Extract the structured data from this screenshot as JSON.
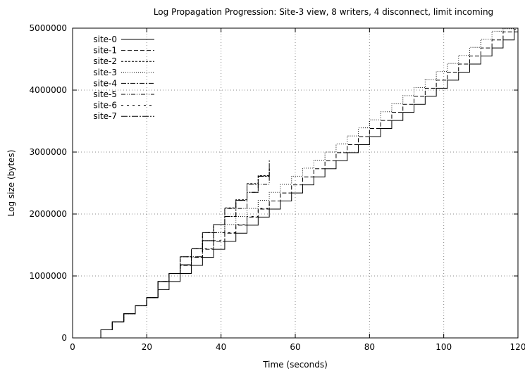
{
  "chart_data": {
    "type": "line",
    "title": "Log Propagation Progression: Site-3 view, 8 writers, 4 disconnect, limit incoming",
    "xlabel": "Time (seconds)",
    "ylabel": "Log size (bytes)",
    "xlim": [
      0,
      120
    ],
    "ylim": [
      0,
      5000000
    ],
    "xticks": [
      "0",
      "20",
      "40",
      "60",
      "80",
      "100",
      "120"
    ],
    "yticks": [
      "0",
      "1000000",
      "2000000",
      "3000000",
      "4000000",
      "5000000"
    ],
    "xtick_values": [
      0,
      20,
      40,
      60,
      80,
      100,
      120
    ],
    "ytick_values": [
      0,
      1000000,
      2000000,
      3000000,
      4000000,
      5000000
    ],
    "grid": true,
    "legend_position": "top-left",
    "series": [
      {
        "name": "site-0",
        "style": "solid",
        "x": [
          5,
          7.6,
          10.7,
          13.8,
          16.9,
          20,
          23,
          26,
          29,
          32,
          35,
          38,
          41,
          44,
          47,
          50,
          53,
          56,
          59,
          62,
          65,
          68,
          71,
          74,
          77,
          80,
          83,
          86,
          89,
          92,
          95,
          98,
          101,
          104,
          107,
          110,
          113,
          116,
          119,
          120
        ],
        "y": [
          0,
          130000,
          260000,
          390000,
          520000,
          650000,
          780000,
          910000,
          1040000,
          1170000,
          1300000,
          1430000,
          1560000,
          1690000,
          1820000,
          1950000,
          2080000,
          2210000,
          2340000,
          2470000,
          2600000,
          2730000,
          2860000,
          2990000,
          3120000,
          3250000,
          3380000,
          3510000,
          3640000,
          3770000,
          3900000,
          4030000,
          4160000,
          4290000,
          4420000,
          4550000,
          4680000,
          4810000,
          4940000,
          4980000
        ]
      },
      {
        "name": "site-1",
        "style": "dash",
        "x": [
          5,
          7.6,
          10.7,
          13.8,
          16.9,
          20,
          23,
          26,
          29,
          32,
          35,
          38,
          41,
          44,
          47,
          50,
          53,
          56,
          59,
          62,
          65,
          68,
          71,
          74,
          77,
          80,
          83,
          86,
          89,
          92,
          95,
          98,
          101,
          104,
          107,
          110,
          113,
          116,
          119,
          120
        ],
        "y": [
          0,
          130000,
          260000,
          390000,
          520000,
          650000,
          910000,
          1040000,
          1170000,
          1300000,
          1430000,
          1560000,
          1690000,
          1820000,
          1950000,
          2080000,
          2210000,
          2340000,
          2470000,
          2600000,
          2730000,
          2860000,
          2990000,
          3120000,
          3250000,
          3380000,
          3510000,
          3640000,
          3770000,
          3900000,
          4030000,
          4160000,
          4290000,
          4420000,
          4550000,
          4680000,
          4810000,
          4940000,
          4980000,
          4990000
        ]
      },
      {
        "name": "site-2",
        "style": "shortdash",
        "x": [
          5,
          7.6,
          10.7,
          13.8,
          16.9,
          20,
          23,
          26,
          29,
          32,
          35,
          38,
          41,
          44,
          47,
          50,
          53
        ],
        "y": [
          0,
          130000,
          260000,
          390000,
          520000,
          650000,
          910000,
          1040000,
          1310000,
          1440000,
          1700000,
          1830000,
          2100000,
          2230000,
          2490000,
          2620000,
          2750000
        ]
      },
      {
        "name": "site-3",
        "style": "dot",
        "x": [
          5,
          7.6,
          10.7,
          13.8,
          16.9,
          20,
          23,
          26,
          29,
          32,
          35,
          38,
          41,
          44,
          47,
          50,
          53,
          56,
          59,
          62,
          65,
          68,
          71,
          74,
          77,
          80,
          83,
          86,
          89,
          92,
          95,
          98,
          101,
          104,
          107,
          110,
          113,
          116,
          119,
          120
        ],
        "y": [
          0,
          130000,
          260000,
          390000,
          520000,
          650000,
          910000,
          1040000,
          1310000,
          1440000,
          1570000,
          1700000,
          1830000,
          1960000,
          2090000,
          2220000,
          2350000,
          2480000,
          2610000,
          2740000,
          2870000,
          3000000,
          3130000,
          3260000,
          3390000,
          3520000,
          3650000,
          3780000,
          3910000,
          4040000,
          4170000,
          4300000,
          4430000,
          4560000,
          4690000,
          4820000,
          4950000,
          4990000,
          5000000,
          5000000
        ]
      },
      {
        "name": "site-4",
        "style": "dashdot",
        "x": [
          5,
          7.6,
          10.7,
          13.8,
          16.9,
          20,
          23,
          26,
          29,
          32,
          35,
          38,
          41,
          44,
          47,
          50,
          53
        ],
        "y": [
          0,
          130000,
          260000,
          390000,
          520000,
          650000,
          910000,
          1040000,
          1310000,
          1440000,
          1700000,
          1830000,
          2090000,
          2220000,
          2480000,
          2610000,
          2870000
        ]
      },
      {
        "name": "site-5",
        "style": "dashdotdot",
        "x": [
          5,
          7.6,
          10.7,
          13.8,
          16.9,
          20,
          23,
          26,
          29,
          32,
          35,
          38,
          41,
          44,
          47,
          50,
          53
        ],
        "y": [
          0,
          130000,
          260000,
          390000,
          520000,
          650000,
          910000,
          1040000,
          1180000,
          1310000,
          1570000,
          1700000,
          1960000,
          2090000,
          2350000,
          2480000,
          2740000
        ]
      },
      {
        "name": "site-6",
        "style": "sparse-dash",
        "x": [
          5,
          7.6,
          10.7,
          13.8,
          16.9,
          20,
          23,
          26,
          29,
          32,
          35,
          38,
          41,
          44,
          47,
          50,
          53
        ],
        "y": [
          0,
          130000,
          260000,
          390000,
          520000,
          650000,
          910000,
          1040000,
          1180000,
          1310000,
          1440000,
          1570000,
          1700000,
          1830000,
          1960000,
          2090000,
          2220000
        ]
      },
      {
        "name": "site-7",
        "style": "longdash-dot",
        "x": [
          5,
          7.6,
          10.7,
          13.8,
          16.9,
          20,
          23,
          26,
          29,
          32,
          35,
          38,
          41,
          44,
          47,
          50,
          53
        ],
        "y": [
          0,
          130000,
          260000,
          390000,
          520000,
          650000,
          910000,
          1040000,
          1180000,
          1440000,
          1570000,
          1830000,
          1960000,
          2220000,
          2350000,
          2610000,
          2740000
        ]
      }
    ]
  }
}
